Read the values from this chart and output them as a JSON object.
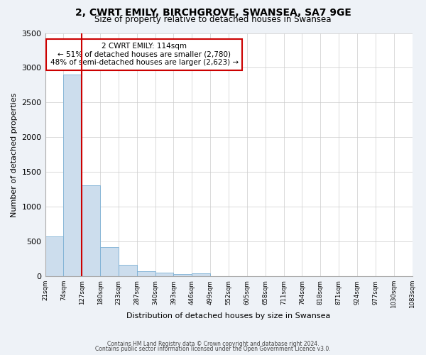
{
  "title": "2, CWRT EMILY, BIRCHGROVE, SWANSEA, SA7 9GE",
  "subtitle": "Size of property relative to detached houses in Swansea",
  "xlabel": "Distribution of detached houses by size in Swansea",
  "ylabel": "Number of detached properties",
  "bin_labels": [
    "21sqm",
    "74sqm",
    "127sqm",
    "180sqm",
    "233sqm",
    "287sqm",
    "340sqm",
    "393sqm",
    "446sqm",
    "499sqm",
    "552sqm",
    "605sqm",
    "658sqm",
    "711sqm",
    "764sqm",
    "818sqm",
    "871sqm",
    "924sqm",
    "977sqm",
    "1030sqm",
    "1083sqm"
  ],
  "bar_heights": [
    570,
    2900,
    1310,
    420,
    165,
    75,
    55,
    30,
    40,
    0,
    0,
    0,
    0,
    0,
    0,
    0,
    0,
    0,
    0,
    0
  ],
  "bar_color": "#ccdded",
  "bar_edge_color": "#7bafd4",
  "property_line_color": "#cc0000",
  "property_line_xindex": 1,
  "annotation_title": "2 CWRT EMILY: 114sqm",
  "annotation_line1": "← 51% of detached houses are smaller (2,780)",
  "annotation_line2": "48% of semi-detached houses are larger (2,623) →",
  "annotation_box_color": "#ffffff",
  "annotation_box_edge": "#cc0000",
  "ylim": [
    0,
    3500
  ],
  "yticks": [
    0,
    500,
    1000,
    1500,
    2000,
    2500,
    3000,
    3500
  ],
  "footer_line1": "Contains HM Land Registry data © Crown copyright and database right 2024.",
  "footer_line2": "Contains public sector information licensed under the Open Government Licence v3.0.",
  "background_color": "#eef2f7",
  "plot_background": "#ffffff"
}
